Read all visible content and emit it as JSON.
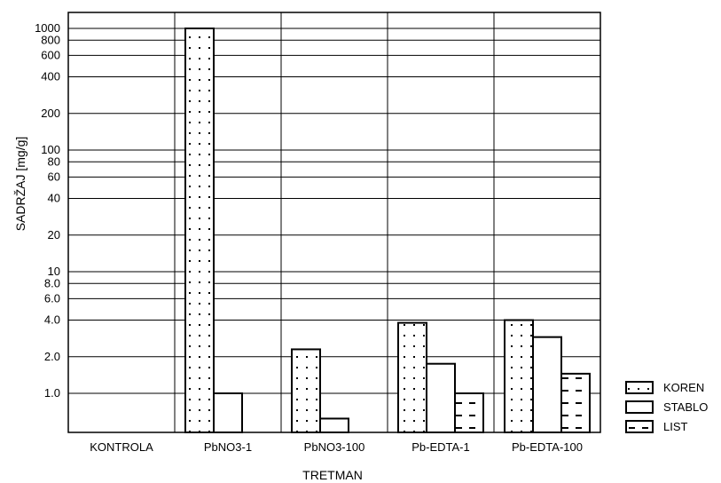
{
  "chart_data": {
    "type": "bar",
    "scale": "log",
    "xlabel": "TRETMAN",
    "ylabel": "SADRŽAJ  [mg/g]",
    "ylim": [
      0.5,
      2000
    ],
    "grid": true,
    "legend_position": "bottom-right",
    "y_ticks": [
      {
        "value": 1,
        "label": "1.0"
      },
      {
        "value": 2,
        "label": "2.0"
      },
      {
        "value": 4,
        "label": "4.0"
      },
      {
        "value": 6,
        "label": "6.0"
      },
      {
        "value": 8,
        "label": "8.0"
      },
      {
        "value": 10,
        "label": "10"
      },
      {
        "value": 20,
        "label": "20"
      },
      {
        "value": 40,
        "label": "40"
      },
      {
        "value": 60,
        "label": "60"
      },
      {
        "value": 80,
        "label": "80"
      },
      {
        "value": 100,
        "label": "100"
      },
      {
        "value": 200,
        "label": "200"
      },
      {
        "value": 400,
        "label": "400"
      },
      {
        "value": 600,
        "label": "600"
      },
      {
        "value": 800,
        "label": "800"
      },
      {
        "value": 1000,
        "label": "1000"
      }
    ],
    "categories": [
      "KONTROLA",
      "PbNO3-1",
      "PbNO3-100",
      "Pb-EDTA-1",
      "Pb-EDTA-100"
    ],
    "series": [
      {
        "name": "KOREN",
        "pattern": "dots",
        "values": [
          null,
          1000,
          2.3,
          3.8,
          4.0
        ]
      },
      {
        "name": "STABLO",
        "pattern": "plain",
        "values": [
          null,
          1.0,
          0.62,
          1.75,
          2.9
        ]
      },
      {
        "name": "LIST",
        "pattern": "dashes",
        "values": [
          null,
          null,
          null,
          1.0,
          1.45
        ]
      }
    ]
  }
}
